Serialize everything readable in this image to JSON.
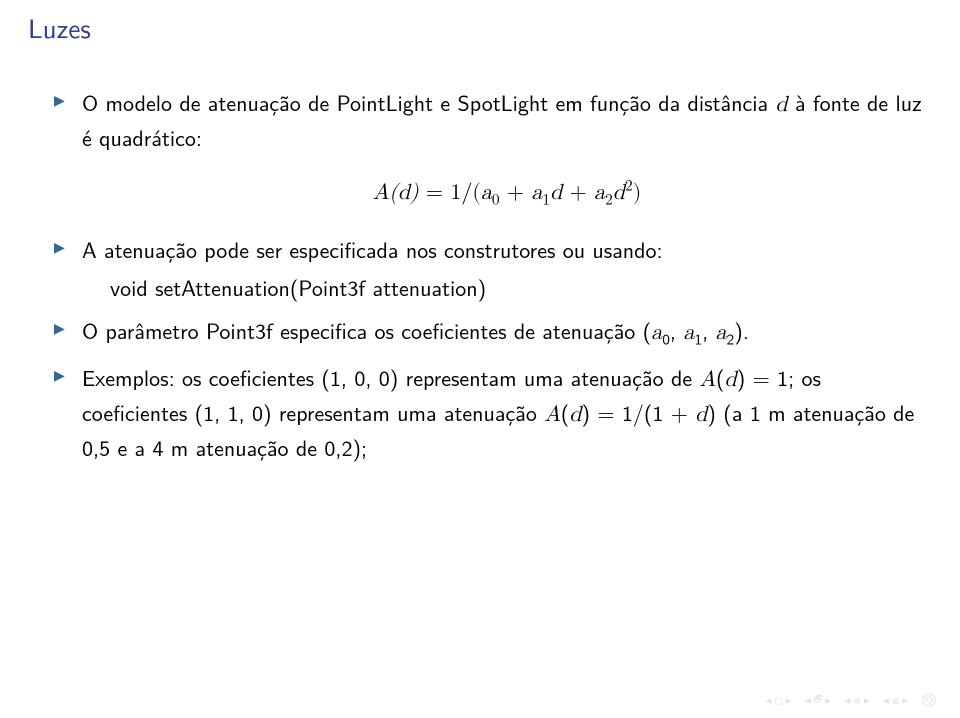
{
  "title_color": "#2f3d8f",
  "bullet_color": "#336799",
  "nav_color": "#c8c8d0",
  "title": "Luzes",
  "bullets": {
    "b1": "O modelo de atenuação de PointLight e SpotLight em função da distância ",
    "b1_it1": "d",
    "b1_after": " à fonte de luz é quadrático:",
    "formula_lhs": "A",
    "formula_d": "d",
    "formula_eq": " = 1/(",
    "formula_a": "a",
    "formula_plus1": " + ",
    "formula_plus2": " + ",
    "formula_close": ")",
    "b2": "A atenuação pode ser especificada nos construtores ou usando:",
    "b2_sub": "void setAttenuation(Point3f attenuation)",
    "b3": "O parâmetro Point3f especifica os coeficientes de atenuação (",
    "b3_a": "a",
    "b3_c1": ", ",
    "b3_c2": ", ",
    "b3_close": ").",
    "b4a": "Exemplos: os coeficientes (1, 0, 0) representam uma atenuação de ",
    "b4b": " = 1; os coeficientes (1, 1, 0) representam uma atenuação ",
    "b4c": " = 1/(1 + ",
    "b4d": ") (a 1 m atenuação de 0,5 e a 4 m atenuação de 0,2);",
    "A": "A",
    "d": "d"
  },
  "subscripts": {
    "s0": "0",
    "s1": "1",
    "s2": "2"
  }
}
